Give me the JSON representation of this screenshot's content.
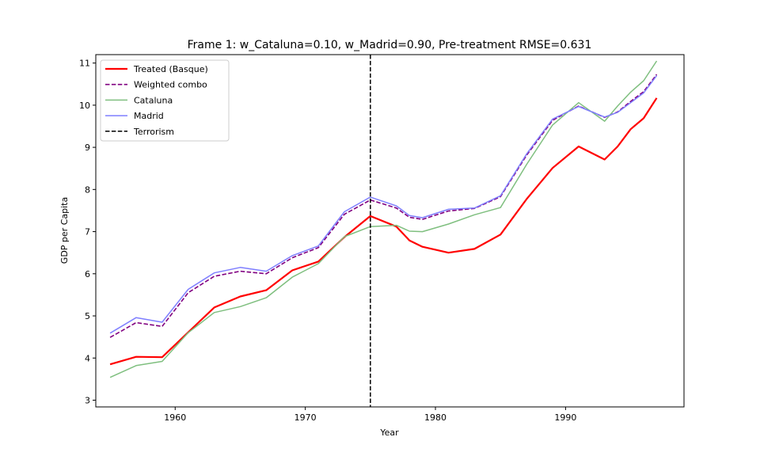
{
  "chart_data": {
    "type": "line",
    "title": "Frame 1: w_Cataluna=0.10, w_Madrid=0.90, Pre-treatment RMSE=0.631",
    "xlabel": "Year",
    "ylabel": "GDP per Capita",
    "xlim": [
      1953.9,
      1999.1
    ],
    "ylim": [
      2.84,
      11.2
    ],
    "xticks": [
      1960,
      1970,
      1980,
      1990
    ],
    "yticks": [
      3,
      4,
      5,
      6,
      7,
      8,
      9,
      10,
      11
    ],
    "grid": false,
    "legend_position": "top-left",
    "vline": {
      "x": 1975,
      "name": "Terrorism",
      "color": "#000000",
      "dash": "dashed"
    },
    "x": [
      1955,
      1957,
      1959,
      1961,
      1963,
      1965,
      1967,
      1969,
      1971,
      1973,
      1975,
      1977,
      1978,
      1979,
      1981,
      1983,
      1985,
      1987,
      1989,
      1991,
      1993,
      1994,
      1995,
      1996,
      1997
    ],
    "series": [
      {
        "name": "Treated (Basque)",
        "color": "#ff0000",
        "width": 2.2,
        "dash": "solid",
        "values": [
          3.85,
          4.03,
          4.02,
          4.61,
          5.2,
          5.46,
          5.61,
          6.08,
          6.29,
          6.87,
          7.37,
          7.12,
          6.79,
          6.64,
          6.5,
          6.59,
          6.93,
          7.77,
          8.51,
          9.02,
          8.71,
          9.02,
          9.43,
          9.69,
          10.17
        ]
      },
      {
        "name": "Weighted combo",
        "color": "#800080",
        "width": 1.6,
        "dash": "dashed",
        "values": [
          4.49,
          4.84,
          4.75,
          5.55,
          5.94,
          6.06,
          6.0,
          6.38,
          6.62,
          7.41,
          7.75,
          7.56,
          7.34,
          7.29,
          7.49,
          7.55,
          7.83,
          8.81,
          9.64,
          9.98,
          9.71,
          9.84,
          10.09,
          10.32,
          10.73
        ]
      },
      {
        "name": "Cataluna",
        "color": "#7fbf7f",
        "width": 1.5,
        "dash": "solid",
        "values": [
          3.54,
          3.82,
          3.92,
          4.6,
          5.08,
          5.22,
          5.43,
          5.92,
          6.24,
          6.88,
          7.12,
          7.15,
          7.01,
          7.0,
          7.18,
          7.4,
          7.57,
          8.59,
          9.53,
          10.06,
          9.62,
          9.98,
          10.31,
          10.58,
          11.05
        ]
      },
      {
        "name": "Madrid",
        "color": "#7f7fff",
        "width": 1.5,
        "dash": "solid",
        "values": [
          4.59,
          4.96,
          4.85,
          5.63,
          6.02,
          6.15,
          6.06,
          6.43,
          6.66,
          7.47,
          7.82,
          7.61,
          7.38,
          7.33,
          7.53,
          7.56,
          7.85,
          8.84,
          9.67,
          9.97,
          9.72,
          9.83,
          10.06,
          10.29,
          10.7
        ]
      }
    ],
    "legend": [
      "Treated (Basque)",
      "Weighted combo",
      "Cataluna",
      "Madrid",
      "Terrorism"
    ]
  }
}
